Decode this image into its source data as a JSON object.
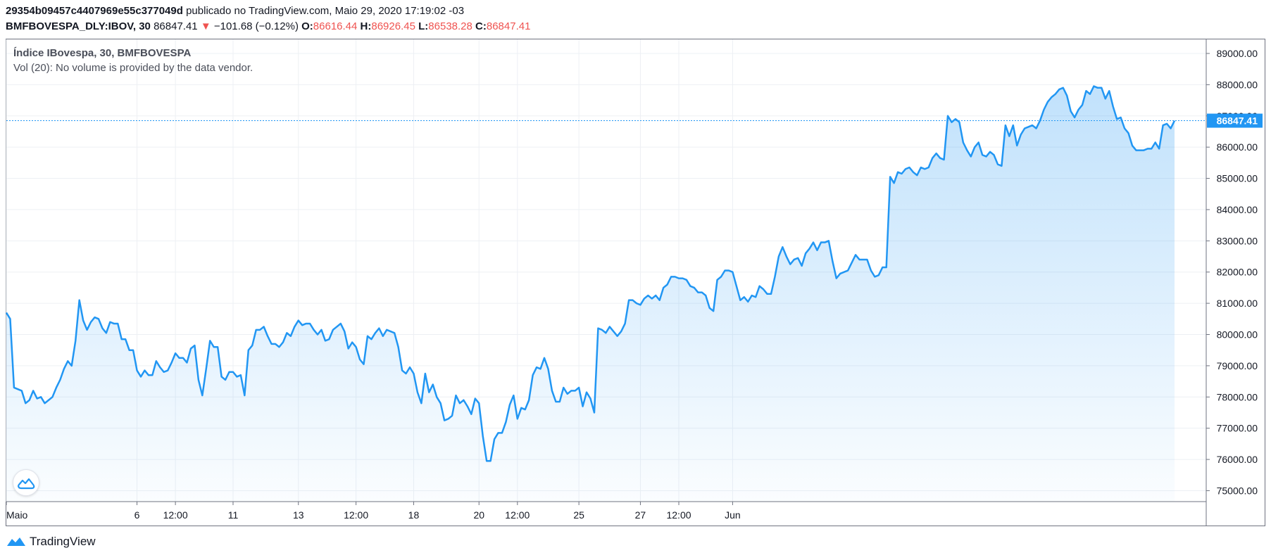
{
  "header": {
    "publisher_id": "29354b09457c4407969e55c377049d",
    "published_text": "publicado no TradingView.com, Maio 29, 2020 17:19:02 -03",
    "symbol": "BMFBOVESPA_DLY:IBOV, 30",
    "last": "86847.41",
    "change_arrow": "▼",
    "change": "−101.68 (−0.12%)",
    "o_label": "O:",
    "o_value": "86616.44",
    "h_label": "H:",
    "h_value": "86926.45",
    "l_label": "L:",
    "l_value": "86538.28",
    "c_label": "C:",
    "c_value": "86847.41"
  },
  "legend": {
    "title": "Índice IBovespa, 30, BMFBOVESPA",
    "volume": "Vol (20): No volume is provided by the data vendor."
  },
  "footer": {
    "brand": "TradingView"
  },
  "icons": {
    "watermark": "tradingview-cloud-icon",
    "brand_logo": "tradingview-logo-icon"
  },
  "colors": {
    "line": "#2196f3",
    "price_label_bg": "#2196f3",
    "down": "#ef5350",
    "grid": "#edf0f4"
  },
  "chart_data": {
    "type": "area",
    "title": "Índice IBovespa, 30, BMFBOVESPA",
    "ylim": [
      74650,
      89450
    ],
    "y_ticks": [
      "89000.00",
      "88000.00",
      "87000.00",
      "86000.00",
      "85000.00",
      "84000.00",
      "83000.00",
      "82000.00",
      "81000.00",
      "80000.00",
      "79000.00",
      "78000.00",
      "77000.00",
      "76000.00",
      "75000.00"
    ],
    "x_ticks": [
      "Maio",
      "6",
      "12:00",
      "11",
      "13",
      "12:00",
      "18",
      "20",
      "12:00",
      "25",
      "27",
      "12:00",
      "Jun"
    ],
    "x_tick_positions": [
      0,
      34,
      44,
      59,
      76,
      91,
      106,
      123,
      133,
      149,
      165,
      175,
      189
    ],
    "last_price_label": "86847.41",
    "last_price": 86847.41,
    "x_unit": "30-minute bar index",
    "values": [
      80700,
      80500,
      78300,
      78250,
      78200,
      77800,
      77900,
      78200,
      77950,
      78000,
      77800,
      77900,
      78000,
      78300,
      78550,
      78900,
      79150,
      79000,
      79800,
      81100,
      80450,
      80150,
      80400,
      80550,
      80500,
      80200,
      80050,
      80400,
      80350,
      80350,
      79850,
      79850,
      79500,
      79500,
      78850,
      78650,
      78850,
      78700,
      78700,
      79150,
      78950,
      78800,
      78850,
      79100,
      79400,
      79250,
      79250,
      79100,
      79550,
      79650,
      78550,
      78050,
      78900,
      79800,
      79600,
      79600,
      78650,
      78550,
      78800,
      78800,
      78650,
      78700,
      78050,
      79500,
      79650,
      80150,
      80150,
      80250,
      79950,
      79700,
      79700,
      79600,
      79750,
      80050,
      79950,
      80250,
      80450,
      80300,
      80350,
      80350,
      80150,
      80000,
      80150,
      79800,
      79850,
      80150,
      80250,
      80350,
      80100,
      79550,
      79750,
      79600,
      79200,
      79050,
      79950,
      79850,
      80050,
      80200,
      79950,
      80150,
      80100,
      80050,
      79600,
      78850,
      78750,
      78950,
      78750,
      78150,
      77800,
      78750,
      78150,
      78400,
      78000,
      77800,
      77250,
      77300,
      77400,
      78050,
      77800,
      77900,
      77700,
      77450,
      77950,
      77800,
      76750,
      75950,
      75950,
      76650,
      76850,
      76850,
      77200,
      77750,
      78050,
      77300,
      77650,
      77600,
      77900,
      78700,
      78950,
      78900,
      79250,
      78900,
      78200,
      77850,
      77850,
      78300,
      78100,
      78200,
      78200,
      78300,
      77700,
      78150,
      77950,
      77500,
      80200,
      80150,
      80050,
      80250,
      80100,
      79950,
      80100,
      80350,
      81100,
      81100,
      81000,
      80950,
      81150,
      81250,
      81150,
      81250,
      81100,
      81500,
      81600,
      81850,
      81850,
      81800,
      81800,
      81750,
      81550,
      81500,
      81350,
      81350,
      81250,
      80850,
      80750,
      81750,
      81850,
      82050,
      82050,
      82000,
      81550,
      81100,
      81200,
      81050,
      81250,
      81200,
      81550,
      81450,
      81300,
      81300,
      81850,
      82500,
      82800,
      82500,
      82250,
      82400,
      82450,
      82200,
      82600,
      82750,
      82950,
      82700,
      82950,
      82950,
      83000,
      82350,
      81800,
      81950,
      82000,
      82050,
      82300,
      82550,
      82400,
      82400,
      82400,
      82050,
      81850,
      81900,
      82150,
      82150,
      85050,
      84850,
      85200,
      85150,
      85300,
      85350,
      85200,
      85100,
      85350,
      85300,
      85350,
      85650,
      85800,
      85650,
      85600,
      87000,
      86800,
      86900,
      86800,
      86150,
      85900,
      85700,
      86000,
      86150,
      85750,
      85700,
      85850,
      85750,
      85450,
      85400,
      86700,
      86350,
      86700,
      86050,
      86400,
      86600,
      86650,
      86700,
      86600,
      86850,
      87200,
      87450,
      87600,
      87700,
      87850,
      87900,
      87650,
      87150,
      86950,
      87200,
      87350,
      87800,
      87700,
      87950,
      87900,
      87900,
      87550,
      87800,
      87300,
      86900,
      86950,
      86600,
      86450,
      86050,
      85900,
      85900,
      85900,
      85950,
      85950,
      86150,
      85950,
      86700,
      86750,
      86600,
      86847.41
    ]
  }
}
